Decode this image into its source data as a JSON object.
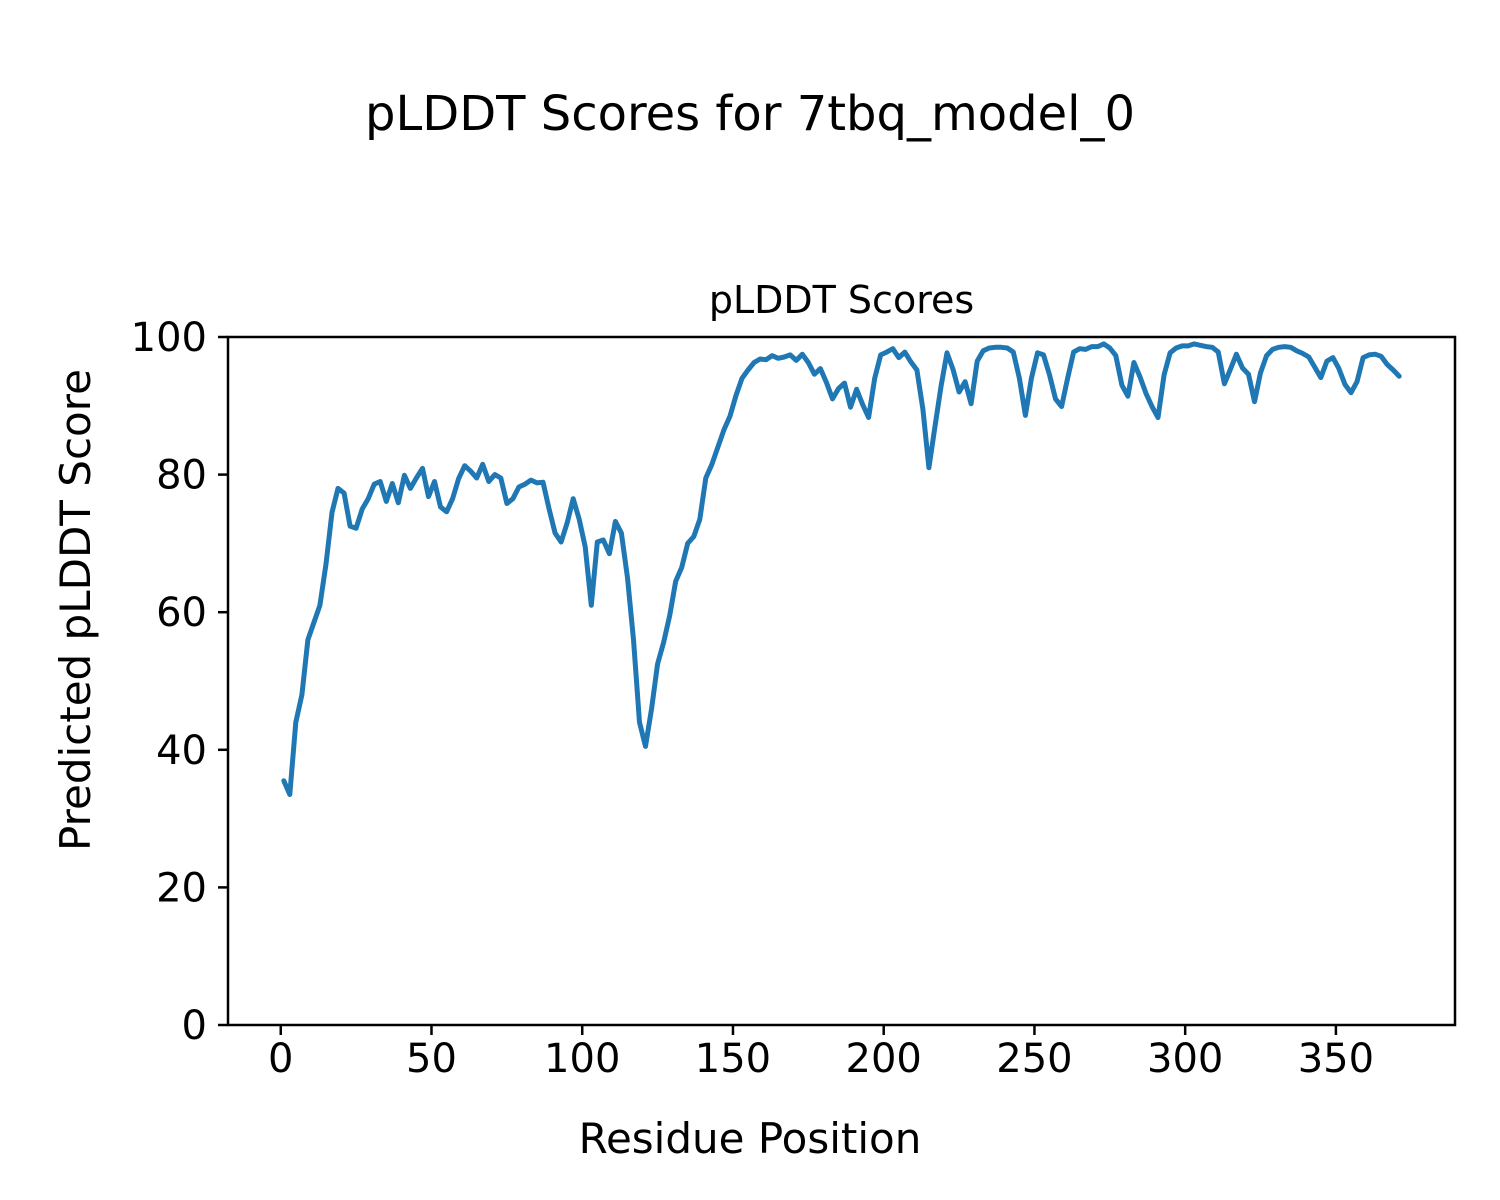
{
  "figure": {
    "suptitle": "pLDDT Scores for 7tbq_model_0",
    "axes_title": "pLDDT Scores",
    "xlabel": "Residue Position",
    "ylabel": "Predicted pLDDT Score"
  },
  "chart_data": {
    "type": "line",
    "title": "pLDDT Scores",
    "figure_title": "pLDDT Scores for 7tbq_model_0",
    "xlabel": "Residue Position",
    "ylabel": "Predicted pLDDT Score",
    "x_ticks": [
      0,
      50,
      100,
      150,
      200,
      250,
      300,
      350
    ],
    "y_ticks": [
      0,
      20,
      40,
      60,
      80,
      100
    ],
    "xlim": [
      -17.5,
      389.5
    ],
    "ylim": [
      0,
      100
    ],
    "grid": false,
    "legend": "none",
    "line_color": "#1f77b4",
    "line_width": 5,
    "series": [
      {
        "name": "pLDDT",
        "x": [
          1,
          3,
          5,
          7,
          9,
          11,
          13,
          15,
          17,
          19,
          21,
          23,
          25,
          27,
          29,
          31,
          33,
          35,
          37,
          39,
          41,
          43,
          45,
          47,
          49,
          51,
          53,
          55,
          57,
          59,
          61,
          63,
          65,
          67,
          69,
          71,
          73,
          75,
          77,
          79,
          81,
          83,
          85,
          87,
          89,
          91,
          93,
          95,
          97,
          99,
          101,
          103,
          105,
          107,
          109,
          111,
          113,
          115,
          117,
          119,
          121,
          123,
          125,
          127,
          129,
          131,
          133,
          135,
          137,
          139,
          141,
          143,
          145,
          147,
          149,
          151,
          153,
          155,
          157,
          159,
          161,
          163,
          165,
          167,
          169,
          171,
          173,
          175,
          177,
          179,
          181,
          183,
          185,
          187,
          189,
          191,
          193,
          195,
          197,
          199,
          201,
          203,
          205,
          207,
          209,
          211,
          213,
          215,
          217,
          219,
          221,
          223,
          225,
          227,
          229,
          231,
          233,
          235,
          237,
          239,
          241,
          243,
          245,
          247,
          249,
          251,
          253,
          255,
          257,
          259,
          261,
          263,
          265,
          267,
          269,
          271,
          273,
          275,
          277,
          279,
          281,
          283,
          285,
          287,
          289,
          291,
          293,
          295,
          297,
          299,
          301,
          303,
          305,
          307,
          309,
          311,
          313,
          315,
          317,
          319,
          321,
          323,
          325,
          327,
          329,
          331,
          333,
          335,
          337,
          339,
          341,
          343,
          345,
          347,
          349,
          351,
          353,
          355,
          357,
          359,
          361,
          363,
          365,
          367,
          369,
          371
        ],
        "y": [
          35.5,
          33.5,
          44,
          48,
          56,
          58.5,
          61,
          67,
          74.5,
          78,
          77.3,
          72.5,
          72.2,
          75,
          76.5,
          78.6,
          79,
          76.1,
          78.7,
          75.9,
          79.9,
          78,
          79.5,
          80.9,
          76.8,
          79,
          75.3,
          74.6,
          76.5,
          79.4,
          81.3,
          80.5,
          79.5,
          81.5,
          79,
          80,
          79.5,
          75.8,
          76.5,
          78.2,
          78.6,
          79.2,
          78.8,
          78.9,
          75,
          71.5,
          70.2,
          73,
          76.5,
          73.5,
          69.5,
          61,
          70.2,
          70.5,
          68.5,
          73.2,
          71.5,
          65,
          56,
          44,
          40.5,
          46,
          52.5,
          55.6,
          59.5,
          64.5,
          66.5,
          70,
          71,
          73.5,
          79.5,
          81.5,
          84,
          86.5,
          88.5,
          91.5,
          94,
          95.2,
          96.3,
          96.8,
          96.7,
          97.3,
          96.9,
          97.1,
          97.4,
          96.6,
          97.5,
          96.3,
          94.6,
          95.4,
          93.4,
          91,
          92.5,
          93.3,
          89.8,
          92.4,
          90.2,
          88.3,
          94,
          97.4,
          97.8,
          98.3,
          97,
          97.8,
          96.4,
          95.2,
          89.5,
          81,
          87,
          92.8,
          97.7,
          95.3,
          92,
          93.5,
          90.3,
          96.5,
          98,
          98.4,
          98.5,
          98.5,
          98.4,
          97.8,
          94,
          88.6,
          94,
          97.7,
          97.4,
          94.5,
          91,
          89.9,
          94,
          97.8,
          98.3,
          98.2,
          98.6,
          98.6,
          99,
          98.4,
          97.3,
          93,
          91.4,
          96.3,
          94.2,
          91.8,
          89.9,
          88.3,
          94.5,
          97.7,
          98.4,
          98.7,
          98.7,
          99,
          98.8,
          98.6,
          98.5,
          97.8,
          93.2,
          95.3,
          97.5,
          95.5,
          94.6,
          90.6,
          94.8,
          97.3,
          98.2,
          98.5,
          98.6,
          98.5,
          98,
          97.6,
          97.1,
          95.6,
          94.1,
          96.5,
          97,
          95.4,
          93.1,
          91.9,
          93.5,
          97,
          97.4,
          97.5,
          97.2,
          96,
          95.2,
          94.3
        ]
      }
    ]
  }
}
